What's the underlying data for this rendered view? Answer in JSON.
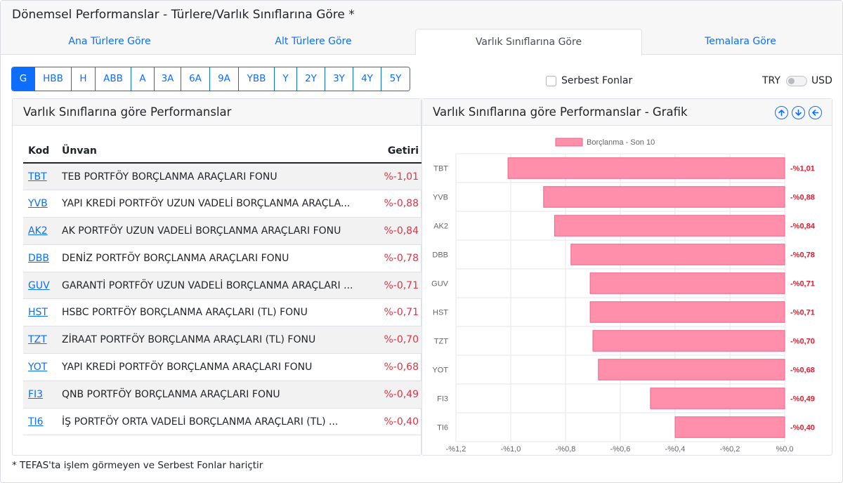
{
  "page": {
    "title": "Dönemsel Performanslar - Türlere/Varlık Sınıflarına Göre *",
    "footnote": "* TEFAS'ta işlem görmeyen ve Serbest Fonlar hariçtir"
  },
  "tabs": [
    {
      "label": "Ana Türlere Göre",
      "active": false
    },
    {
      "label": "Alt Türlere Göre",
      "active": false
    },
    {
      "label": "Varlık Sınıflarına Göre",
      "active": true
    },
    {
      "label": "Temalara Göre",
      "active": false
    }
  ],
  "periods": [
    "G",
    "HBB",
    "H",
    "ABB",
    "A",
    "3A",
    "6A",
    "9A",
    "YBB",
    "Y",
    "2Y",
    "3Y",
    "4Y",
    "5Y"
  ],
  "active_period": "G",
  "filters": {
    "serbest_label": "Serbest Fonlar",
    "serbest_checked": false,
    "currency_left": "TRY",
    "currency_right": "USD",
    "usd_selected": false
  },
  "table_panel": {
    "title": "Varlık Sınıflarına göre Performanslar",
    "columns": {
      "kod": "Kod",
      "unvan": "Ünvan",
      "getiri": "Getiri"
    },
    "rows": [
      {
        "kod": "TBT",
        "unvan": "TEB PORTFÖY BORÇLANMA ARAÇLARI FONU",
        "getiri": "%-1,01"
      },
      {
        "kod": "YVB",
        "unvan": "YAPI KREDİ PORTFÖY UZUN VADELİ BORÇLANMA ARAÇLA...",
        "getiri": "%-0,88"
      },
      {
        "kod": "AK2",
        "unvan": "AK PORTFÖY UZUN VADELİ BORÇLANMA ARAÇLARI FONU",
        "getiri": "%-0,84"
      },
      {
        "kod": "DBB",
        "unvan": "DENİZ PORTFÖY BORÇLANMA ARAÇLARI FONU",
        "getiri": "%-0,78"
      },
      {
        "kod": "GUV",
        "unvan": "GARANTİ PORTFÖY UZUN VADELİ BORÇLANMA ARAÇLARI ...",
        "getiri": "%-0,71"
      },
      {
        "kod": "HST",
        "unvan": "HSBC PORTFÖY BORÇLANMA ARAÇLARI (TL) FONU",
        "getiri": "%-0,71"
      },
      {
        "kod": "TZT",
        "unvan": "ZİRAAT PORTFÖY BORÇLANMA ARAÇLARI (TL) FONU",
        "getiri": "%-0,70"
      },
      {
        "kod": "YOT",
        "unvan": "YAPI KREDİ PORTFÖY BORÇLANMA ARAÇLARI FONU",
        "getiri": "%-0,68"
      },
      {
        "kod": "FI3",
        "unvan": "QNB PORTFÖY BORÇLANMA ARAÇLARI FONU",
        "getiri": "%-0,49"
      },
      {
        "kod": "TI6",
        "unvan": "İŞ PORTFÖY ORTA VADELİ BORÇLANMA ARAÇLARI (TL) ...",
        "getiri": "%-0,40"
      }
    ]
  },
  "chart_panel": {
    "title": "Varlık Sınıflarına göre Performanslar - Grafik",
    "icons": [
      "arrow-up-circle-icon",
      "arrow-down-circle-icon",
      "arrow-left-circle-icon"
    ]
  },
  "chart_data": {
    "type": "bar",
    "orientation": "horizontal",
    "categories": [
      "TBT",
      "YVB",
      "AK2",
      "DBB",
      "GUV",
      "HST",
      "TZT",
      "YOT",
      "FI3",
      "TI6"
    ],
    "series": [
      {
        "name": "Borçlanma - Son 10",
        "values": [
          -1.01,
          -0.88,
          -0.84,
          -0.78,
          -0.71,
          -0.71,
          -0.7,
          -0.68,
          -0.49,
          -0.4
        ],
        "labels": [
          "-%1,01",
          "-%0,88",
          "-%0,84",
          "-%0,78",
          "-%0,71",
          "-%0,71",
          "-%0,70",
          "-%0,68",
          "-%0,49",
          "-%0,40"
        ],
        "color": "#ff8fab"
      }
    ],
    "xlim": [
      -1.2,
      0
    ],
    "x_ticks": [
      -1.2,
      -1.0,
      -0.8,
      -0.6,
      -0.4,
      -0.2,
      0.0
    ],
    "x_tick_labels": [
      "-%1,2",
      "-%1,0",
      "-%0,8",
      "-%0,6",
      "-%0,4",
      "-%0,2",
      "%0,0"
    ],
    "legend_position": "top-center",
    "grid": true,
    "label_color": "#e8172c"
  },
  "colors": {
    "accent": "#0d6efd",
    "negative": "#dc3545",
    "bar_fill": "#ff8fab",
    "bar_stroke": "#f06288"
  }
}
